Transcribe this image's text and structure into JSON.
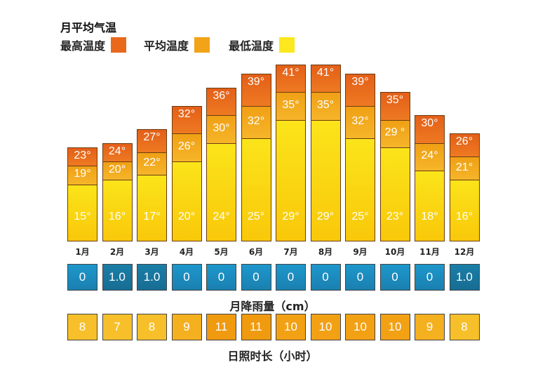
{
  "chart_data": {
    "type": "bar",
    "title": "月平均气温",
    "categories": [
      "1月",
      "2月",
      "3月",
      "4月",
      "5月",
      "6月",
      "7月",
      "8月",
      "9月",
      "10月",
      "11月",
      "12月"
    ],
    "series": [
      {
        "name": "最高温度",
        "color": "#e8691c",
        "values": [
          23,
          24,
          27,
          32,
          36,
          39,
          41,
          41,
          39,
          35,
          30,
          26
        ],
        "labels": [
          "23°",
          "24°",
          "27°",
          "32°",
          "36°",
          "39°",
          "41°",
          "41°",
          "39°",
          "35°",
          "30°",
          "26°"
        ]
      },
      {
        "name": "平均温度",
        "color": "#f2a318",
        "values": [
          19,
          20,
          22,
          26,
          30,
          32,
          35,
          35,
          32,
          29,
          24,
          21
        ],
        "labels": [
          "19°",
          "20°",
          "22°",
          "26°",
          "30°",
          "32°",
          "35°",
          "35°",
          "32°",
          "29 °",
          "24°",
          "21°"
        ]
      },
      {
        "name": "最低温度",
        "color": "#fbd80e",
        "values": [
          15,
          16,
          17,
          20,
          24,
          25,
          29,
          29,
          25,
          23,
          18,
          16
        ],
        "labels": [
          "15°",
          "16°",
          "17°",
          "20°",
          "24°",
          "25°",
          "29°",
          "29°",
          "25°",
          "23°",
          "18°",
          "16°"
        ]
      }
    ],
    "rainfall": {
      "label": "月降雨量（cm）",
      "color": "#1a8bbd",
      "values": [
        "0",
        "1.0",
        "1.0",
        "0",
        "0",
        "0",
        "0",
        "0",
        "0",
        "0",
        "0",
        "1.0"
      ]
    },
    "sunshine": {
      "label": "日照时长（小时）",
      "color": "#f3aa1c",
      "values": [
        "8",
        "7",
        "8",
        "9",
        "11",
        "11",
        "10",
        "10",
        "10",
        "10",
        "9",
        "8"
      ]
    }
  }
}
